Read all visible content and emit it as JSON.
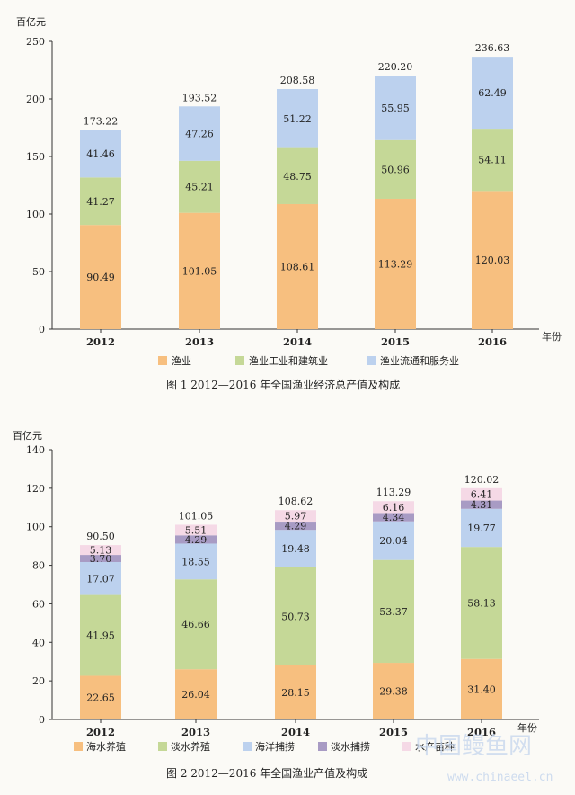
{
  "chart_data": [
    {
      "type": "bar",
      "stacked": true,
      "caption": "图 1   2012—2016 年全国渔业经济总产值及构成",
      "unit_label": "百亿元",
      "xunit_label": "年份",
      "categories": [
        "2012",
        "2013",
        "2014",
        "2015",
        "2016"
      ],
      "ylim": [
        0,
        250
      ],
      "yticks": [
        "0",
        "50",
        "100",
        "150",
        "200",
        "250"
      ],
      "totals": [
        "173.22",
        "193.52",
        "208.58",
        "220.20",
        "236.63"
      ],
      "series": [
        {
          "name": "渔业",
          "color": "#f7bf7f",
          "values": [
            90.49,
            101.05,
            108.61,
            113.29,
            120.03
          ],
          "labels": [
            "90.49",
            "101.05",
            "108.61",
            "113.29",
            "120.03"
          ]
        },
        {
          "name": "渔业工业和建筑业",
          "color": "#c5d897",
          "values": [
            41.27,
            45.21,
            48.75,
            50.96,
            54.11
          ],
          "labels": [
            "41.27",
            "45.21",
            "48.75",
            "50.96",
            "54.11"
          ]
        },
        {
          "name": "渔业流通和服务业",
          "color": "#bcd1ee",
          "values": [
            41.46,
            47.26,
            51.22,
            55.95,
            62.49
          ],
          "labels": [
            "41.46",
            "47.26",
            "51.22",
            "55.95",
            "62.49"
          ]
        }
      ],
      "grid": false,
      "legend": "bottom"
    },
    {
      "type": "bar",
      "stacked": true,
      "caption": "图 2   2012—2016 年全国渔业产值及构成",
      "unit_label": "百亿元",
      "xunit_label": "年份",
      "categories": [
        "2012",
        "2013",
        "2014",
        "2015",
        "2016"
      ],
      "ylim": [
        0,
        140
      ],
      "yticks": [
        "0",
        "20",
        "40",
        "60",
        "80",
        "100",
        "120",
        "140"
      ],
      "totals": [
        "90.50",
        "101.05",
        "108.62",
        "113.29",
        "120.02"
      ],
      "series": [
        {
          "name": "海水养殖",
          "color": "#f7bf7f",
          "values": [
            22.65,
            26.04,
            28.15,
            29.38,
            31.4
          ],
          "labels": [
            "22.65",
            "26.04",
            "28.15",
            "29.38",
            "31.40"
          ]
        },
        {
          "name": "淡水养殖",
          "color": "#c5d897",
          "values": [
            41.95,
            46.66,
            50.73,
            53.37,
            58.13
          ],
          "labels": [
            "41.95",
            "46.66",
            "50.73",
            "53.37",
            "58.13"
          ]
        },
        {
          "name": "海洋捕捞",
          "color": "#bcd1ee",
          "values": [
            17.07,
            18.55,
            19.48,
            20.04,
            19.77
          ],
          "labels": [
            "17.07",
            "18.55",
            "19.48",
            "20.04",
            "19.77"
          ]
        },
        {
          "name": "淡水捕捞",
          "color": "#a89bc4",
          "values": [
            3.7,
            4.29,
            4.29,
            4.34,
            4.31
          ],
          "labels": [
            "3.70",
            "4.29",
            "4.29",
            "4.34",
            "4.31"
          ]
        },
        {
          "name": "水产苗种",
          "color": "#f5d9e6",
          "values": [
            5.13,
            5.51,
            5.97,
            6.16,
            6.41
          ],
          "labels": [
            "5.13",
            "5.51",
            "5.97",
            "6.16",
            "6.41"
          ]
        }
      ],
      "grid": false,
      "legend": "bottom"
    }
  ],
  "watermark": {
    "title": "中国鳗鱼网",
    "url": "www.chinaeel.cn"
  }
}
